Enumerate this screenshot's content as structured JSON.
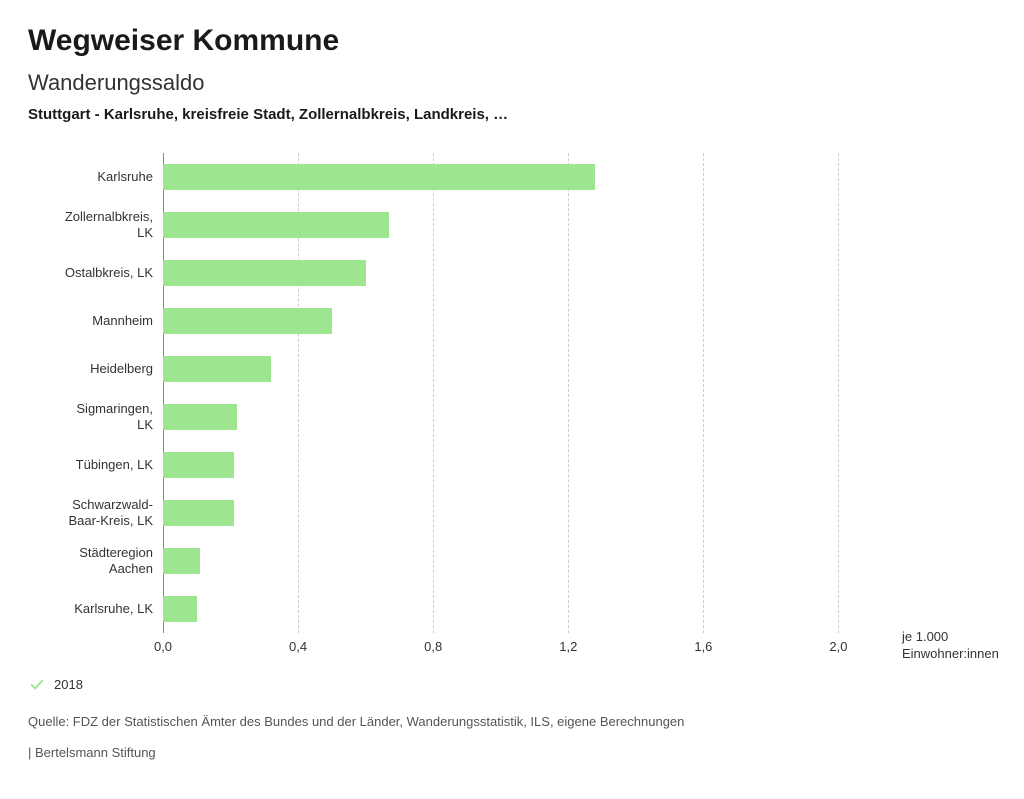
{
  "header": {
    "title": "Wegweiser Kommune",
    "subtitle": "Wanderungssaldo",
    "description": "Stuttgart - Karlsruhe, kreisfreie Stadt, Zollernalbkreis, Landkreis, …"
  },
  "chart": {
    "type": "bar-horizontal",
    "bar_color": "#9de58e",
    "grid_color": "#cccccc",
    "axis_color": "#888888",
    "background_color": "#ffffff",
    "xmin": 0.0,
    "xmax": 2.2,
    "ticks": [
      {
        "value": 0.0,
        "label": "0,0"
      },
      {
        "value": 0.4,
        "label": "0,4"
      },
      {
        "value": 0.8,
        "label": "0,8"
      },
      {
        "value": 1.2,
        "label": "1,2"
      },
      {
        "value": 1.6,
        "label": "1,6"
      },
      {
        "value": 2.0,
        "label": "2,0"
      }
    ],
    "axis_unit_line1": "je 1.000",
    "axis_unit_line2": "Einwohner:innen",
    "categories": [
      {
        "label": "Karlsruhe",
        "value": 1.28
      },
      {
        "label": "Zollernalbkreis, LK",
        "value": 0.67
      },
      {
        "label": "Ostalbkreis, LK",
        "value": 0.6
      },
      {
        "label": "Mannheim",
        "value": 0.5
      },
      {
        "label": "Heidelberg",
        "value": 0.32
      },
      {
        "label": "Sigmaringen, LK",
        "value": 0.22
      },
      {
        "label": "Tübingen, LK",
        "value": 0.21
      },
      {
        "label": "Schwarzwald-Baar-Kreis, LK",
        "value": 0.21
      },
      {
        "label": "Städteregion Aachen",
        "value": 0.11
      },
      {
        "label": "Karlsruhe, LK",
        "value": 0.1
      }
    ]
  },
  "legend": {
    "year": "2018",
    "check_color": "#9de58e"
  },
  "source": "Quelle: FDZ der Statistischen Ämter des Bundes und der Länder, Wanderungsstatistik, ILS, eigene Berechnungen",
  "footer": "| Bertelsmann Stiftung"
}
